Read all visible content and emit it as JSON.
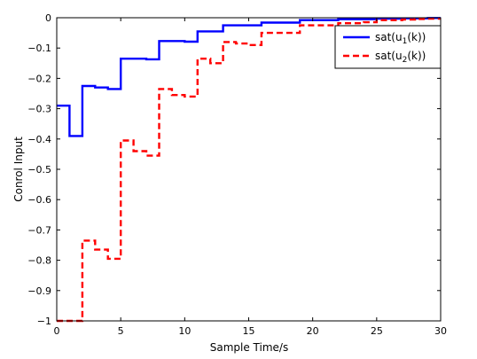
{
  "chart_data": {
    "type": "line",
    "style": "step",
    "title": "",
    "xlabel": "Sample Time/s",
    "ylabel": "Conrol Input",
    "xlim": [
      0,
      30
    ],
    "ylim": [
      -1,
      0
    ],
    "xticks": [
      0,
      5,
      10,
      15,
      20,
      25,
      30
    ],
    "xtick_labels": [
      "0",
      "5",
      "10",
      "15",
      "20",
      "25",
      "30"
    ],
    "yticks": [
      0,
      -0.1,
      -0.2,
      -0.3,
      -0.4,
      -0.5,
      -0.6,
      -0.7,
      -0.8,
      -0.9,
      -1
    ],
    "ytick_labels": [
      "0",
      "−0.1",
      "−0.2",
      "−0.3",
      "−0.4",
      "−0.5",
      "−0.6",
      "−0.7",
      "−0.8",
      "−0.9",
      "−1"
    ],
    "grid": false,
    "legend_position": "top-right",
    "x": [
      0,
      1,
      2,
      3,
      4,
      5,
      6,
      7,
      8,
      9,
      10,
      11,
      12,
      13,
      14,
      15,
      16,
      17,
      18,
      19,
      20,
      21,
      22,
      23,
      24,
      25,
      26,
      27,
      28,
      29
    ],
    "series": [
      {
        "name": "sat(u1(k))",
        "legend_main": "sat(u",
        "legend_sub": "1",
        "legend_tail": "(k))",
        "color": "#0000ff",
        "dash": "solid",
        "values": [
          -0.29,
          -0.39,
          -0.225,
          -0.23,
          -0.235,
          -0.135,
          -0.135,
          -0.137,
          -0.077,
          -0.077,
          -0.079,
          -0.045,
          -0.045,
          -0.025,
          -0.025,
          -0.025,
          -0.016,
          -0.016,
          -0.016,
          -0.008,
          -0.008,
          -0.008,
          -0.005,
          -0.005,
          -0.005,
          -0.003,
          -0.003,
          -0.002,
          -0.002,
          -0.001
        ]
      },
      {
        "name": "sat(u2(k))",
        "legend_main": "sat(u",
        "legend_sub": "2",
        "legend_tail": "(k))",
        "color": "#ff0000",
        "dash": "dashed",
        "values": [
          -1,
          -1,
          -0.735,
          -0.765,
          -0.795,
          -0.405,
          -0.44,
          -0.455,
          -0.235,
          -0.255,
          -0.26,
          -0.135,
          -0.15,
          -0.08,
          -0.085,
          -0.09,
          -0.05,
          -0.05,
          -0.05,
          -0.025,
          -0.025,
          -0.025,
          -0.018,
          -0.018,
          -0.015,
          -0.008,
          -0.008,
          -0.006,
          -0.004,
          -0.003
        ]
      }
    ]
  }
}
